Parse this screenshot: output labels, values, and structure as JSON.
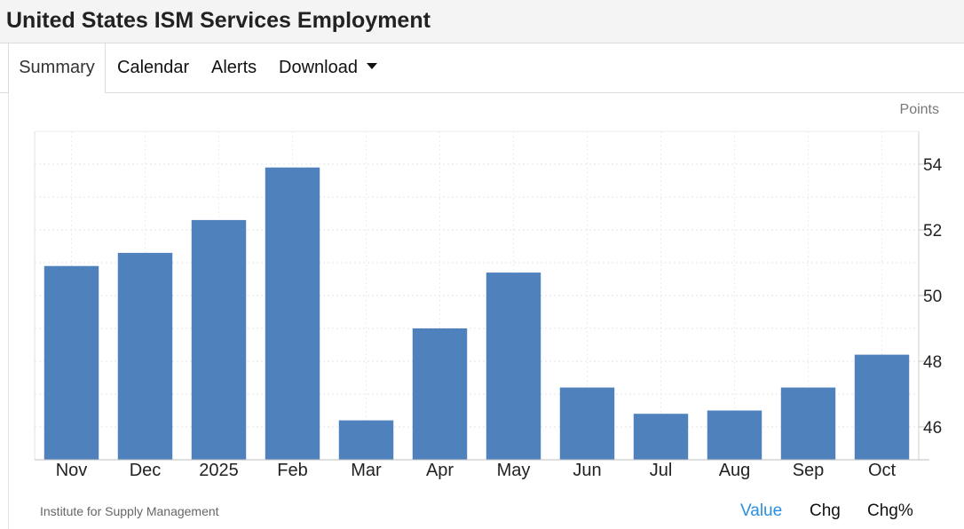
{
  "header": {
    "title": "United States ISM Services Employment"
  },
  "tabs": [
    {
      "label": "Summary",
      "active": true
    },
    {
      "label": "Calendar",
      "active": false
    },
    {
      "label": "Alerts",
      "active": false
    },
    {
      "label": "Download",
      "active": false,
      "icon": "caret-down-icon"
    }
  ],
  "chart_data": {
    "type": "bar",
    "title": "",
    "units": "Points",
    "categories": [
      "Nov",
      "Dec",
      "2025",
      "Feb",
      "Mar",
      "Apr",
      "May",
      "Jun",
      "Jul",
      "Aug",
      "Sep",
      "Oct"
    ],
    "values": [
      50.9,
      51.3,
      52.3,
      53.9,
      46.2,
      49.0,
      50.7,
      47.2,
      46.4,
      46.5,
      47.2,
      48.2
    ],
    "ylim": [
      45,
      55
    ],
    "yticks": [
      46,
      48,
      50,
      52,
      54
    ],
    "y_axis_side": "right",
    "grid": true,
    "bar_color": "#4f81bd"
  },
  "footer": {
    "source": "Institute for Supply Management",
    "toggles": [
      {
        "label": "Value",
        "active": true,
        "color": "#2a8fe0"
      },
      {
        "label": "Chg",
        "active": false
      },
      {
        "label": "Chg%",
        "active": false
      }
    ]
  }
}
